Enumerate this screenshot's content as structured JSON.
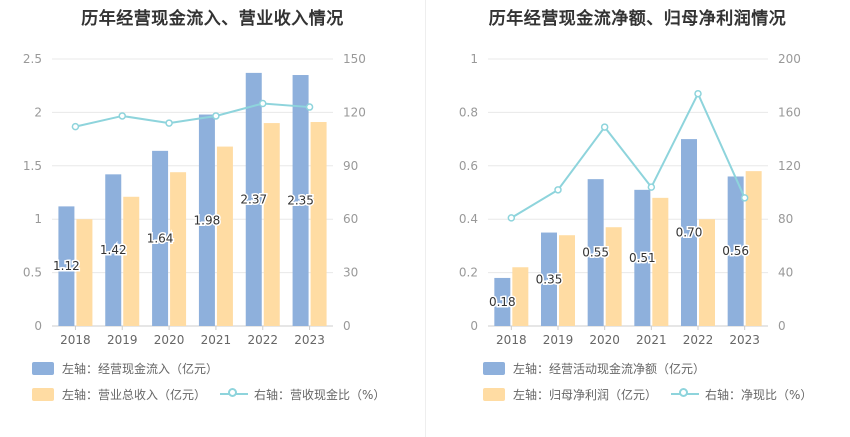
{
  "chart_data": [
    {
      "type": "bar",
      "title": "历年经营现金流入、营业收入情况",
      "categories": [
        "2018",
        "2019",
        "2020",
        "2021",
        "2022",
        "2023"
      ],
      "series": [
        {
          "name": "左轴：经营现金流入（亿元）",
          "axis": "left",
          "kind": "bar",
          "values": [
            1.12,
            1.42,
            1.64,
            1.98,
            2.37,
            2.35
          ],
          "labels": [
            "1.12",
            "1.42",
            "1.64",
            "1.98",
            "2.37",
            "2.35"
          ]
        },
        {
          "name": "左轴：营业总收入（亿元）",
          "axis": "left",
          "kind": "bar",
          "values": [
            1.0,
            1.21,
            1.44,
            1.68,
            1.9,
            1.91
          ]
        },
        {
          "name": "右轴：营收现金比（%）",
          "axis": "right",
          "kind": "line",
          "values": [
            112,
            118,
            114,
            118,
            125,
            123
          ]
        }
      ],
      "yleft": {
        "lim": [
          0,
          2.5
        ],
        "ticks": [
          "0",
          "0.5",
          "1",
          "1.5",
          "2",
          "2.5"
        ]
      },
      "yright": {
        "lim": [
          0,
          150
        ],
        "ticks": [
          "0",
          "30",
          "60",
          "90",
          "120",
          "150"
        ]
      },
      "colors": {
        "bar1": "#8eb0dc",
        "bar2": "#ffdca3",
        "line": "#8ed4dc"
      },
      "grid": true,
      "legend_position": "bottom"
    },
    {
      "type": "bar",
      "title": "历年经营现金流净额、归母净利润情况",
      "categories": [
        "2018",
        "2019",
        "2020",
        "2021",
        "2022",
        "2023"
      ],
      "series": [
        {
          "name": "左轴：经营活动现金流净额（亿元）",
          "axis": "left",
          "kind": "bar",
          "values": [
            0.18,
            0.35,
            0.55,
            0.51,
            0.7,
            0.56
          ],
          "labels": [
            "0.18",
            "0.35",
            "0.55",
            "0.51",
            "0.70",
            "0.56"
          ]
        },
        {
          "name": "左轴：归母净利润（亿元）",
          "axis": "left",
          "kind": "bar",
          "values": [
            0.22,
            0.34,
            0.37,
            0.48,
            0.4,
            0.58
          ]
        },
        {
          "name": "右轴：净现比（%）",
          "axis": "right",
          "kind": "line",
          "values": [
            81,
            102,
            149,
            104,
            174,
            96
          ]
        }
      ],
      "yleft": {
        "lim": [
          0,
          1
        ],
        "ticks": [
          "0",
          "0.2",
          "0.4",
          "0.6",
          "0.8",
          "1"
        ]
      },
      "yright": {
        "lim": [
          0,
          200
        ],
        "ticks": [
          "0",
          "40",
          "80",
          "120",
          "160",
          "200"
        ]
      },
      "colors": {
        "bar1": "#8eb0dc",
        "bar2": "#ffdca3",
        "line": "#8ed4dc"
      },
      "grid": true,
      "legend_position": "bottom"
    }
  ]
}
